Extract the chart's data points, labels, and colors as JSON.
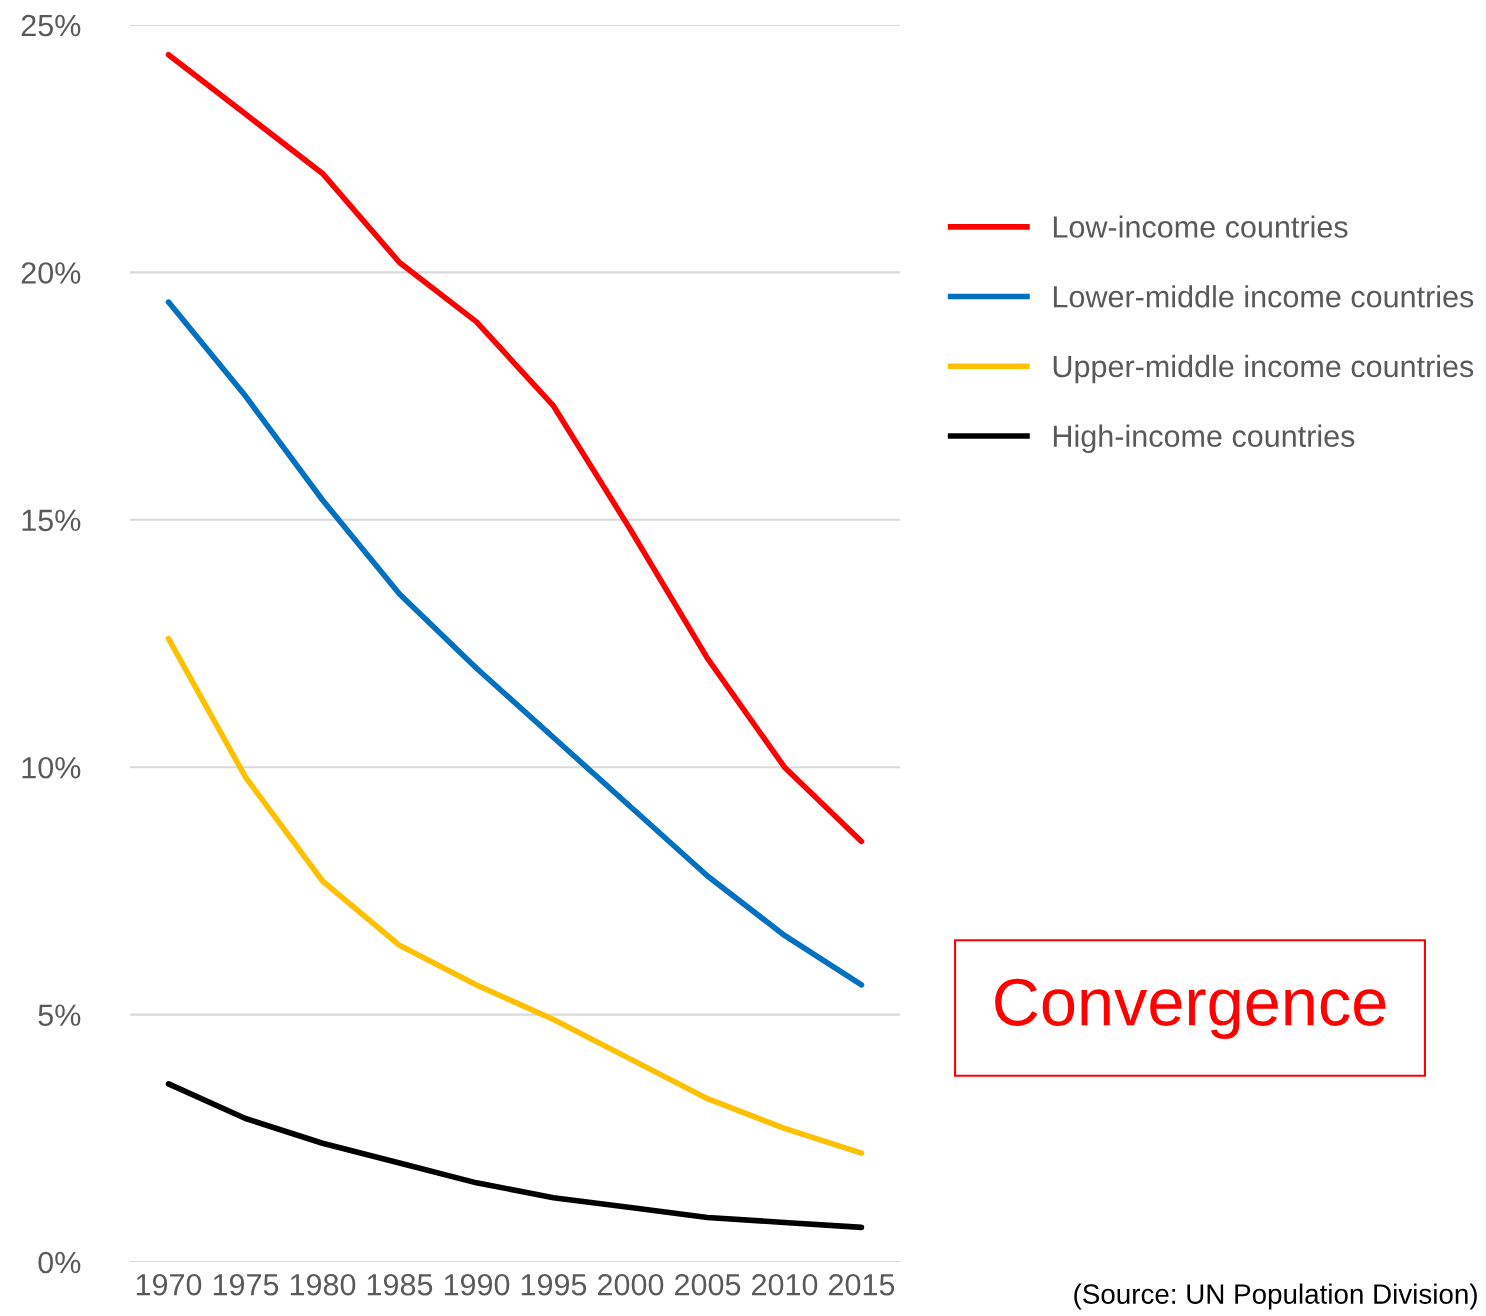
{
  "chart_data": {
    "type": "line",
    "categories": [
      "1970",
      "1975",
      "1980",
      "1985",
      "1990",
      "1995",
      "2000",
      "2005",
      "2010",
      "2015"
    ],
    "series": [
      {
        "name": "Low-income countries",
        "color": "#ff0000",
        "values": [
          24.4,
          23.2,
          22.0,
          20.2,
          19.0,
          17.3,
          14.8,
          12.2,
          10.0,
          8.5
        ]
      },
      {
        "name": "Lower-middle income countries",
        "color": "#0070c0",
        "values": [
          19.4,
          17.5,
          15.4,
          13.5,
          12.0,
          10.6,
          9.2,
          7.8,
          6.6,
          5.6
        ]
      },
      {
        "name": "Upper-middle income countries",
        "color": "#ffc000",
        "values": [
          12.6,
          9.8,
          7.7,
          6.4,
          5.6,
          4.9,
          4.1,
          3.3,
          2.7,
          2.2
        ]
      },
      {
        "name": "High-income countries",
        "color": "#000000",
        "values": [
          3.6,
          2.9,
          2.4,
          2.0,
          1.6,
          1.3,
          1.1,
          0.9,
          0.8,
          0.7
        ]
      }
    ],
    "ylim": [
      0,
      25
    ],
    "yticks": [
      {
        "value": 0,
        "label": "0%"
      },
      {
        "value": 5,
        "label": "5%"
      },
      {
        "value": 10,
        "label": "10%"
      },
      {
        "value": 15,
        "label": "15%"
      },
      {
        "value": 20,
        "label": "20%"
      },
      {
        "value": 25,
        "label": "25%"
      }
    ],
    "grid": "y",
    "legend": "right",
    "marker": "none",
    "line_style": "solid",
    "annotations": [
      "Convergence",
      "(Source: UN Population Division)"
    ]
  }
}
